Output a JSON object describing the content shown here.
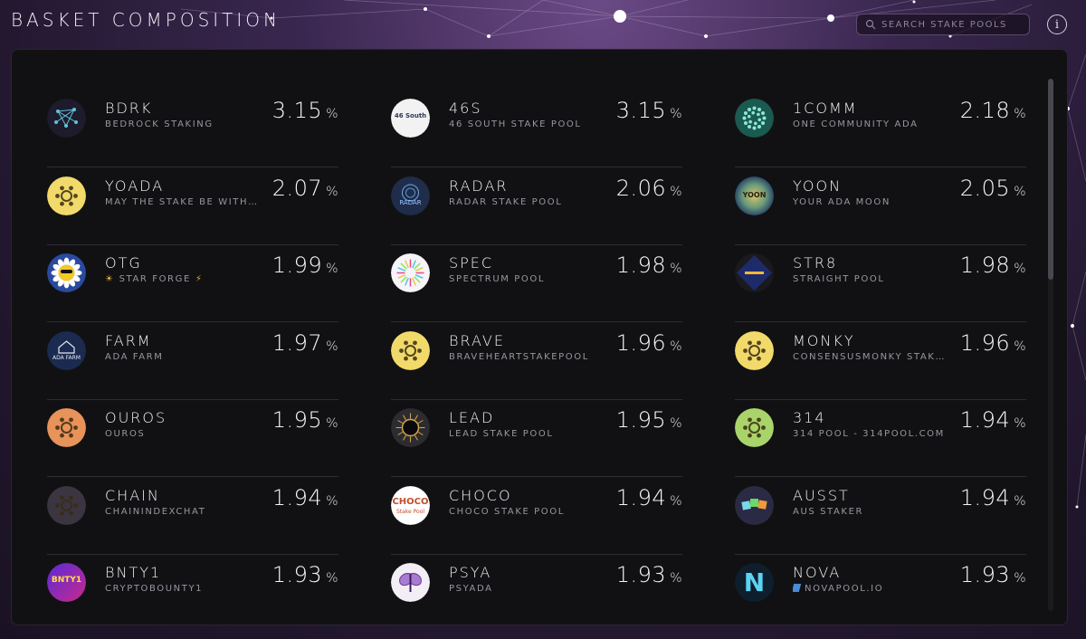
{
  "header": {
    "title": "BASKET COMPOSITION",
    "search_placeholder": "SEARCH STAKE POOLS",
    "info_label": "i"
  },
  "pools": [
    [
      {
        "ticker": "BDRK",
        "name": "BEDROCK STAKING",
        "percent": "3.15",
        "unit": "%",
        "logo": "bedrock-logo",
        "logo_bg": "#1e1b2c"
      },
      {
        "ticker": "46S",
        "name": "46 SOUTH STAKE POOL",
        "percent": "3.15",
        "unit": "%",
        "logo": "46south-logo",
        "logo_bg": "#f2f2f2"
      },
      {
        "ticker": "1COMM",
        "name": "ONE COMMUNITY ADA",
        "percent": "2.18",
        "unit": "%",
        "logo": "cardano-teal-logo",
        "logo_bg": "#1a5a50"
      }
    ],
    [
      {
        "ticker": "YOADA",
        "name": "MAY THE STAKE BE WITH Y...",
        "percent": "2.07",
        "unit": "%",
        "logo": "cardano-default-icon",
        "logo_bg": "#f2da6a"
      },
      {
        "ticker": "RADAR",
        "name": "RADAR STAKE POOL",
        "percent": "2.06",
        "unit": "%",
        "logo": "radar-logo",
        "logo_bg": "#1f2d4a"
      },
      {
        "ticker": "YOON",
        "name": "YOUR ADA MOON",
        "percent": "2.05",
        "unit": "%",
        "logo": "moon-logo",
        "logo_bg": "#3a6a5a"
      }
    ],
    [
      {
        "ticker": "OTG",
        "name": "STAR FORGE",
        "percent": "1.99",
        "unit": "%",
        "logo": "flower-logo",
        "logo_bg": "#2a4aa0",
        "prefix_icon": "sun-icon",
        "suffix_icon": "bolt-icon"
      },
      {
        "ticker": "SPEC",
        "name": "SPECTRUM POOL",
        "percent": "1.98",
        "unit": "%",
        "logo": "spectrum-logo",
        "logo_bg": "#f6f4f8"
      },
      {
        "ticker": "STR8",
        "name": "STRAIGHT POOL",
        "percent": "1.98",
        "unit": "%",
        "logo": "straight-logo",
        "logo_bg": "#1d2b6a"
      }
    ],
    [
      {
        "ticker": "FARM",
        "name": "ADA FARM",
        "percent": "1.97",
        "unit": "%",
        "logo": "farm-logo",
        "logo_bg": "#1a2a50"
      },
      {
        "ticker": "BRAVE",
        "name": "BRAVEHEARTSTAKEPOOL",
        "percent": "1.96",
        "unit": "%",
        "logo": "cardano-default-icon",
        "logo_bg": "#f2da6a"
      },
      {
        "ticker": "MONKY",
        "name": "CONSENSUSMONKY STAKE...",
        "percent": "1.96",
        "unit": "%",
        "logo": "cardano-default-icon",
        "logo_bg": "#f2da6a"
      }
    ],
    [
      {
        "ticker": "OUROS",
        "name": "OUROS",
        "percent": "1.95",
        "unit": "%",
        "logo": "cardano-default-icon",
        "logo_bg": "#e8935a"
      },
      {
        "ticker": "LEAD",
        "name": "LEAD STAKE POOL",
        "percent": "1.95",
        "unit": "%",
        "logo": "lead-chip-logo",
        "logo_bg": "#2c2c30"
      },
      {
        "ticker": "314",
        "name": "314 POOL - 314POOL.COM",
        "percent": "1.94",
        "unit": "%",
        "logo": "cardano-default-icon",
        "logo_bg": "#a9d46a"
      }
    ],
    [
      {
        "ticker": "CHAIN",
        "name": "CHAININDEXCHAT",
        "percent": "1.94",
        "unit": "%",
        "logo": "cardano-default-icon",
        "logo_bg": "#3a3540"
      },
      {
        "ticker": "CHOCO",
        "name": "CHOCO STAKE POOL",
        "percent": "1.94",
        "unit": "%",
        "logo": "choco-logo",
        "logo_bg": "#ffffff"
      },
      {
        "ticker": "AUSST",
        "name": "AUS STAKER",
        "percent": "1.94",
        "unit": "%",
        "logo": "aus-staker-logo",
        "logo_bg": "#2a2a44"
      }
    ],
    [
      {
        "ticker": "BNTY1",
        "name": "CRYPTOBOUNTY1",
        "percent": "1.93",
        "unit": "%",
        "logo": "bounty-logo",
        "logo_bg": "#3a1a7a"
      },
      {
        "ticker": "PSYA",
        "name": "PSYADA",
        "percent": "1.93",
        "unit": "%",
        "logo": "moth-logo",
        "logo_bg": "#f3eef6"
      },
      {
        "ticker": "NOVA",
        "name": "NOVAPOOL.IO",
        "percent": "1.93",
        "unit": "%",
        "logo": "nova-logo",
        "logo_bg": "#0f1e2c",
        "prefix_icon": "link-icon"
      }
    ]
  ],
  "logo_texts": {
    "south": "46 South",
    "radar": "RADAR",
    "yoon": "YOON",
    "farm": "ADA FARM",
    "choco": "CHOCO",
    "choco_sub": "Stake Pool",
    "bnty": "BNTY1",
    "nova": "N"
  },
  "colors": {
    "panel": "#111113",
    "ticker": "#f4f2f6",
    "subtitle": "#9a95a0",
    "divider": "#2e2b33"
  }
}
